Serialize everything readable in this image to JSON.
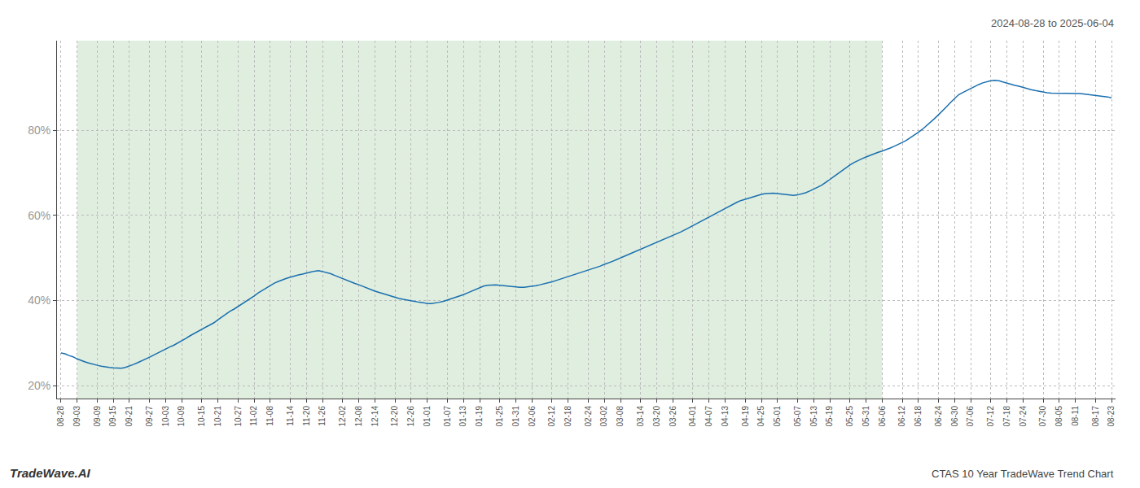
{
  "chart_data": {
    "type": "line",
    "title": "CTAS 10 Year TradeWave Trend Chart",
    "subtitle": "2024-08-28 to 2025-06-04",
    "annotations": [
      "TradeWave.AI"
    ],
    "color": "#1a6faf",
    "grid": true,
    "highlight": {
      "from": "09-03",
      "to": "06-06",
      "color": "#d4e8d4"
    },
    "ylim": [
      0.17,
      1.01
    ],
    "yticks": [
      {
        "value": 0.2,
        "label": "20%"
      },
      {
        "value": 0.4,
        "label": "40%"
      },
      {
        "value": 0.6,
        "label": "60%"
      },
      {
        "value": 0.8,
        "label": "80%"
      }
    ],
    "categories": [
      "08-28",
      null,
      null,
      null,
      "09-03",
      null,
      null,
      null,
      null,
      "09-09",
      null,
      null,
      null,
      "09-15",
      null,
      null,
      null,
      "09-21",
      null,
      null,
      null,
      null,
      "09-27",
      null,
      null,
      null,
      "10-03",
      null,
      null,
      null,
      "10-09",
      null,
      null,
      null,
      null,
      "10-15",
      null,
      null,
      null,
      "10-21",
      null,
      null,
      null,
      null,
      "10-27",
      null,
      null,
      null,
      "11-02",
      null,
      null,
      null,
      "11-08",
      null,
      null,
      null,
      null,
      "11-14",
      null,
      null,
      null,
      "11-20",
      null,
      null,
      null,
      "11-26",
      null,
      null,
      null,
      null,
      "12-02",
      null,
      null,
      null,
      "12-08",
      null,
      null,
      null,
      "12-14",
      null,
      null,
      null,
      null,
      "12-20",
      null,
      null,
      null,
      "12-26",
      null,
      null,
      null,
      "01-01",
      null,
      null,
      null,
      null,
      "01-07",
      null,
      null,
      null,
      "01-13",
      null,
      null,
      null,
      "01-19",
      null,
      null,
      null,
      null,
      "01-25",
      null,
      null,
      null,
      "01-31",
      null,
      null,
      null,
      "02-06",
      null,
      null,
      null,
      null,
      "02-12",
      null,
      null,
      null,
      "02-18",
      null,
      null,
      null,
      null,
      "02-24",
      null,
      null,
      null,
      "03-02",
      null,
      null,
      null,
      "03-08",
      null,
      null,
      null,
      null,
      "03-14",
      null,
      null,
      null,
      "03-20",
      null,
      null,
      null,
      "03-26",
      null,
      null,
      null,
      null,
      "04-01",
      null,
      null,
      null,
      "04-07",
      null,
      null,
      null,
      "04-13",
      null,
      null,
      null,
      null,
      "04-19",
      null,
      null,
      null,
      "04-25",
      null,
      null,
      null,
      "05-01",
      null,
      null,
      null,
      null,
      "05-07",
      null,
      null,
      null,
      "05-13",
      null,
      null,
      null,
      "05-19",
      null,
      null,
      null,
      null,
      "05-25",
      null,
      null,
      null,
      "05-31",
      null,
      null,
      null,
      "06-06",
      null,
      null,
      null,
      null,
      "06-12",
      null,
      null,
      null,
      "06-18",
      null,
      null,
      null,
      null,
      "06-24",
      null,
      null,
      null,
      "06-30",
      null,
      null,
      null,
      "07-06",
      null,
      null,
      null,
      null,
      "07-12",
      null,
      null,
      null,
      "07-18",
      null,
      null,
      null,
      "07-24",
      null,
      null,
      null,
      null,
      "07-30",
      null,
      null,
      null,
      "08-05",
      null,
      null,
      null,
      "08-11",
      null,
      null,
      null,
      null,
      "08-17",
      null,
      null,
      null,
      "08-23"
    ],
    "values": [
      0.277,
      0.275,
      0.271,
      0.268,
      0.263,
      0.259,
      0.256,
      0.253,
      0.25,
      0.248,
      0.246,
      0.244,
      0.243,
      0.242,
      0.241,
      0.241,
      0.243,
      0.246,
      0.25,
      0.254,
      0.258,
      0.263,
      0.267,
      0.272,
      0.277,
      0.282,
      0.286,
      0.291,
      0.295,
      0.3,
      0.305,
      0.311,
      0.317,
      0.322,
      0.328,
      0.333,
      0.337,
      0.342,
      0.348,
      0.355,
      0.362,
      0.369,
      0.375,
      0.38,
      0.386,
      0.392,
      0.398,
      0.405,
      0.411,
      0.418,
      0.424,
      0.43,
      0.436,
      0.441,
      0.445,
      0.449,
      0.452,
      0.455,
      0.458,
      0.46,
      0.462,
      0.465,
      0.467,
      0.469,
      0.47,
      0.468,
      0.466,
      0.463,
      0.459,
      0.455,
      0.451,
      0.447,
      0.443,
      0.44,
      0.437,
      0.433,
      0.429,
      0.426,
      0.422,
      0.419,
      0.416,
      0.413,
      0.411,
      0.408,
      0.405,
      0.403,
      0.401,
      0.4,
      0.398,
      0.396,
      0.395,
      0.393,
      0.393,
      0.394,
      0.396,
      0.398,
      0.401,
      0.404,
      0.407,
      0.41,
      0.414,
      0.418,
      0.422,
      0.426,
      0.43,
      0.434,
      0.436,
      0.437,
      0.437,
      0.436,
      0.435,
      0.434,
      0.433,
      0.431,
      0.431,
      0.431,
      0.432,
      0.433,
      0.435,
      0.437,
      0.439,
      0.441,
      0.444,
      0.447,
      0.45,
      0.453,
      0.456,
      0.459,
      0.462,
      0.465,
      0.468,
      0.471,
      0.474,
      0.478,
      0.481,
      0.485,
      0.488,
      0.492,
      0.496,
      0.5,
      0.504,
      0.508,
      0.512,
      0.516,
      0.52,
      0.524,
      0.528,
      0.532,
      0.536,
      0.54,
      0.544,
      0.548,
      0.552,
      0.556,
      0.561,
      0.566,
      0.571,
      0.576,
      0.581,
      0.586,
      0.591,
      0.597,
      0.602,
      0.607,
      0.612,
      0.617,
      0.622,
      0.627,
      0.631,
      0.635,
      0.638,
      0.641,
      0.644,
      0.647,
      0.649,
      0.651,
      0.652,
      0.652,
      0.651,
      0.65,
      0.649,
      0.648,
      0.647,
      0.648,
      0.65,
      0.653,
      0.657,
      0.661,
      0.666,
      0.671,
      0.677,
      0.684,
      0.691,
      0.698,
      0.705,
      0.712,
      0.718,
      0.724,
      0.729,
      0.733,
      0.737,
      0.741,
      0.744,
      0.748,
      0.751,
      0.754,
      0.758,
      0.762,
      0.766,
      0.771,
      0.776,
      0.782,
      0.788,
      0.795,
      0.802,
      0.81,
      0.818,
      0.827,
      0.836,
      0.845,
      0.855,
      0.865,
      0.875,
      0.883,
      0.888,
      0.893,
      0.898,
      0.903,
      0.907,
      0.911,
      0.914,
      0.916,
      0.917,
      0.916,
      0.913,
      0.91,
      0.908,
      0.905,
      0.903,
      0.9,
      0.898,
      0.895,
      0.893,
      0.891,
      0.889,
      0.888,
      0.887,
      0.887,
      0.887,
      0.886,
      0.886,
      0.886,
      0.886,
      0.886,
      0.885,
      0.884,
      0.883,
      0.882,
      0.88,
      0.879,
      0.878,
      0.876
    ]
  }
}
